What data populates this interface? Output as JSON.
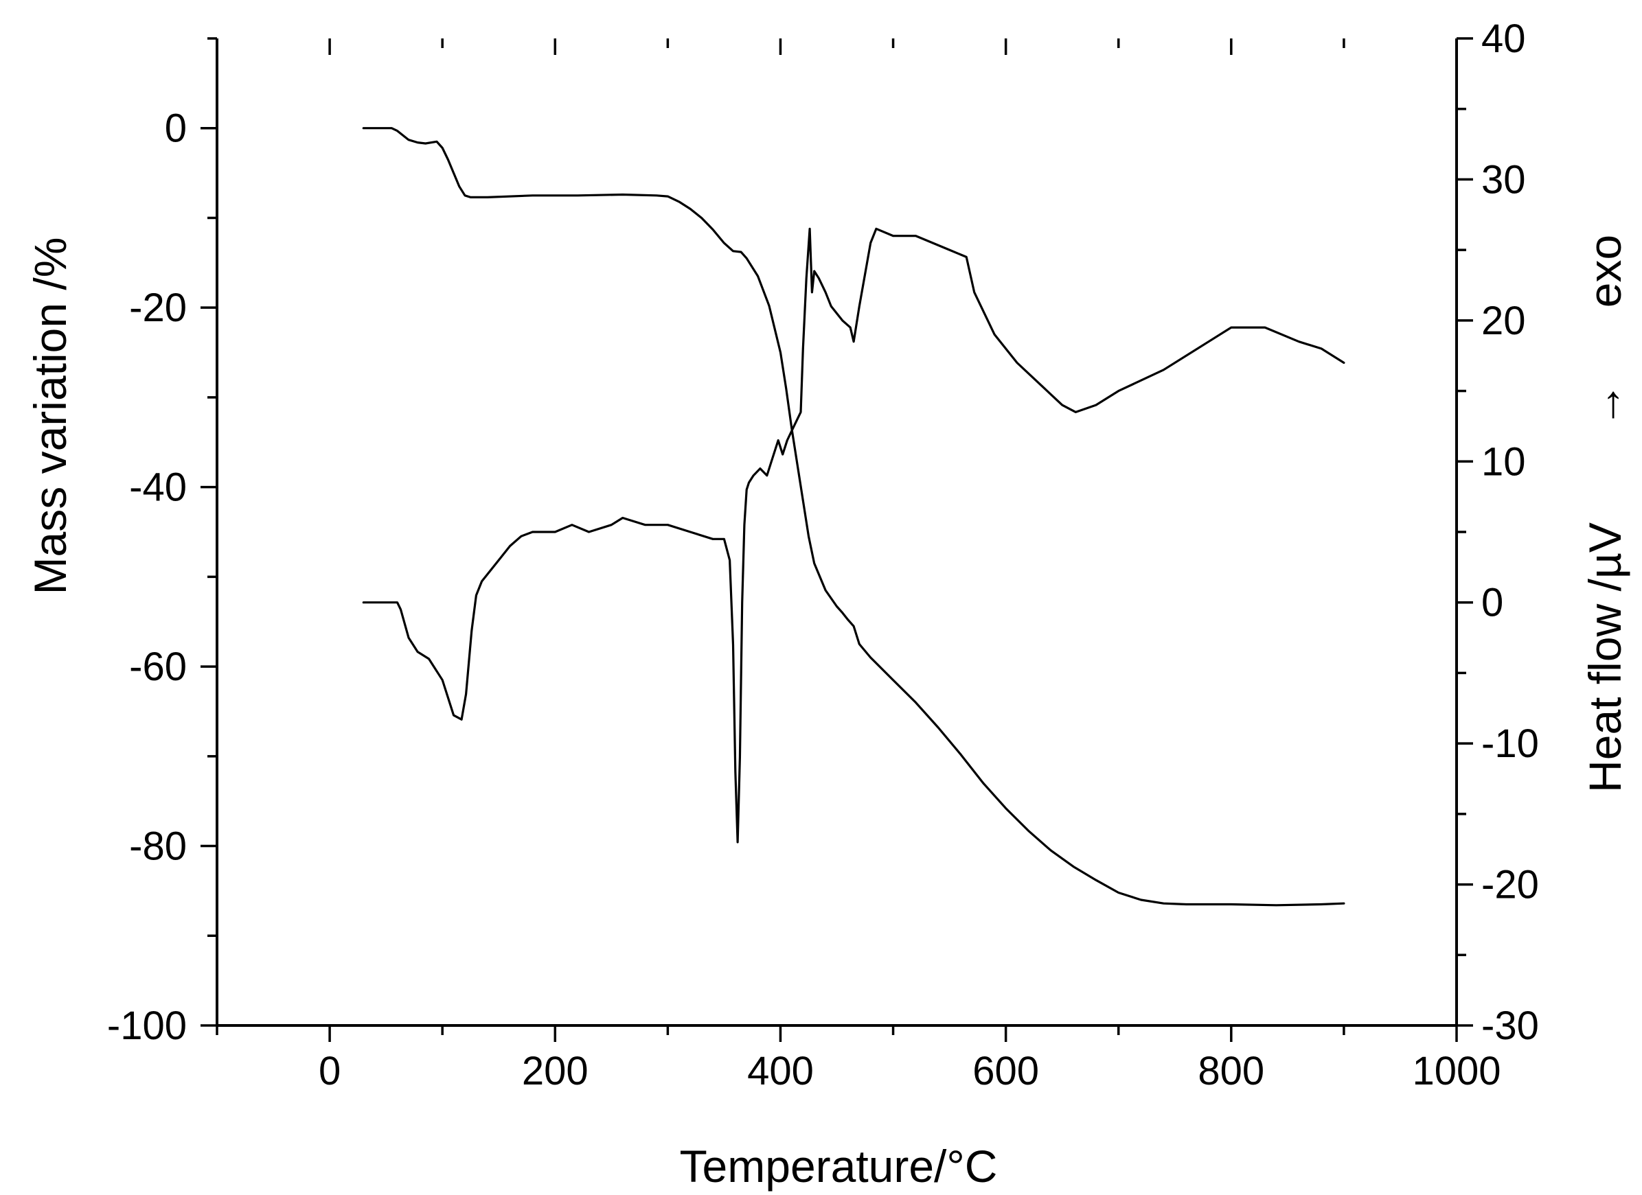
{
  "chart_data": {
    "type": "line",
    "title": "",
    "xlabel": "Temperature/°C",
    "ylabel_left": "Mass variation /%",
    "ylabel_right": "Heat flow /µV",
    "right_annotation": {
      "arrow": "→",
      "text": "exo"
    },
    "xlim": [
      -100,
      1000
    ],
    "ylim_left": [
      -100,
      10
    ],
    "ylim_right": [
      -30,
      40
    ],
    "x_ticks": [
      0,
      200,
      400,
      600,
      800,
      1000
    ],
    "x_tick_labels": [
      "0",
      "200",
      "400",
      "600",
      "800",
      "1000"
    ],
    "left_ticks": [
      0,
      -20,
      -40,
      -60,
      -80,
      -100
    ],
    "left_tick_labels": [
      "0",
      "-20",
      "-40",
      "-60",
      "-80",
      "-100"
    ],
    "right_ticks": [
      40,
      30,
      20,
      10,
      0,
      -10,
      -20,
      -30
    ],
    "right_tick_labels": [
      "40",
      "30",
      "20",
      "10",
      "0",
      "-10",
      "-20",
      "-30"
    ],
    "grid": false,
    "legend": "none",
    "series": [
      {
        "axis": "left",
        "x": [
          30,
          55,
          60,
          70,
          78,
          85,
          95,
          100,
          105,
          110,
          115,
          120,
          125,
          140,
          180,
          220,
          260,
          290,
          300,
          310,
          320,
          330,
          340,
          350,
          358,
          365,
          370,
          380,
          390,
          400,
          405,
          410,
          415,
          420,
          425,
          430,
          440,
          450,
          455,
          460,
          465,
          470,
          480,
          500,
          520,
          540,
          560,
          580,
          600,
          620,
          640,
          660,
          680,
          700,
          720,
          740,
          760,
          800,
          840,
          880,
          900
        ],
        "y": [
          0,
          0,
          -0.3,
          -1.3,
          -1.6,
          -1.7,
          -1.5,
          -2.2,
          -3.5,
          -5.0,
          -6.5,
          -7.5,
          -7.7,
          -7.7,
          -7.5,
          -7.5,
          -7.4,
          -7.5,
          -7.6,
          -8.2,
          -9.0,
          -10.0,
          -11.3,
          -12.8,
          -13.7,
          -13.8,
          -14.5,
          -16.5,
          -19.8,
          -25.0,
          -29.0,
          -33.5,
          -37.5,
          -41.5,
          -45.5,
          -48.5,
          -51.5,
          -53.3,
          -54.0,
          -54.8,
          -55.5,
          -57.5,
          -59.0,
          -61.5,
          -64.0,
          -66.8,
          -69.8,
          -73.0,
          -75.8,
          -78.3,
          -80.5,
          -82.3,
          -83.8,
          -85.2,
          -86.0,
          -86.4,
          -86.5,
          -86.5,
          -86.6,
          -86.5,
          -86.4
        ]
      },
      {
        "axis": "right",
        "x": [
          30,
          60,
          63,
          70,
          78,
          88,
          100,
          110,
          117,
          121,
          126,
          130,
          135,
          140,
          150,
          160,
          170,
          180,
          200,
          215,
          230,
          250,
          260,
          280,
          300,
          320,
          340,
          350,
          355,
          358,
          360,
          362,
          364,
          366,
          368,
          370,
          372,
          376,
          382,
          388,
          392,
          398,
          402,
          406,
          412,
          418,
          420,
          423,
          426,
          428,
          430,
          434,
          440,
          445,
          455,
          462,
          465,
          470,
          480,
          485,
          500,
          520,
          550,
          565,
          572,
          578,
          590,
          610,
          630,
          650,
          662,
          680,
          700,
          740,
          780,
          800,
          830,
          860,
          880,
          900
        ],
        "y": [
          0,
          0,
          -0.5,
          -2.5,
          -3.5,
          -4.0,
          -5.5,
          -8.0,
          -8.3,
          -6.5,
          -2.0,
          0.5,
          1.5,
          2.0,
          3.0,
          4.0,
          4.7,
          5.0,
          5.0,
          5.5,
          5.0,
          5.5,
          6.0,
          5.5,
          5.5,
          5.0,
          4.5,
          4.5,
          3.0,
          -3.0,
          -12.0,
          -17.0,
          -11.0,
          0.0,
          5.5,
          8.0,
          8.5,
          9.0,
          9.5,
          9.0,
          10.0,
          11.5,
          10.5,
          11.5,
          12.5,
          13.5,
          18.0,
          23.0,
          26.5,
          22.0,
          23.5,
          23.0,
          22.0,
          21.0,
          20.0,
          19.5,
          18.5,
          21.0,
          25.5,
          26.5,
          26.0,
          26.0,
          25.0,
          24.5,
          22.0,
          21.0,
          19.0,
          17.0,
          15.5,
          14.0,
          13.5,
          14.0,
          15.0,
          16.5,
          18.5,
          19.5,
          19.5,
          18.5,
          18.0,
          17.0
        ]
      }
    ]
  }
}
